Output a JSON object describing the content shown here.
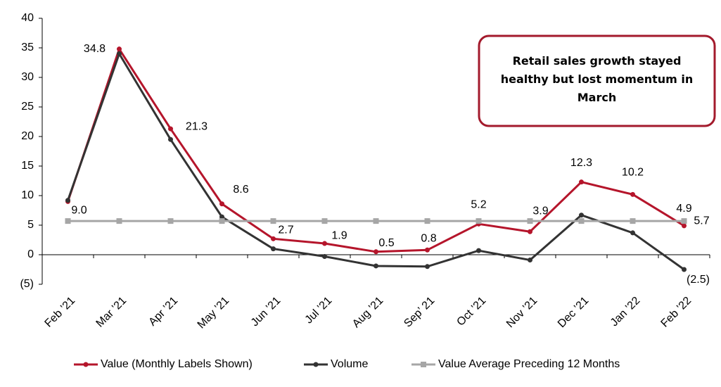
{
  "chart_data": {
    "type": "line",
    "categories": [
      "Feb ’21",
      "Mar ’21",
      "Apr ’21",
      "May ’21",
      "Jun ’21",
      "Jul ’21",
      "Aug ’21",
      "Sep’ 21",
      "Oct ’21",
      "Nov ’21",
      "Dec ’21",
      "Jan ’22",
      "Feb ’22"
    ],
    "series": [
      {
        "name": "Value (Monthly Labels Shown)",
        "color": "#b5152b",
        "values": [
          9.0,
          34.8,
          21.3,
          8.6,
          2.7,
          1.9,
          0.5,
          0.8,
          5.2,
          3.9,
          12.3,
          10.2,
          4.9
        ],
        "value_labels": [
          "9.0",
          "34.8",
          "21.3",
          "8.6",
          "2.7",
          "1.9",
          "0.5",
          "0.8",
          "5.2",
          "3.9",
          "12.3",
          "10.2",
          "4.9"
        ]
      },
      {
        "name": "Volume",
        "color": "#333333",
        "values": [
          9.2,
          34.0,
          19.5,
          6.4,
          1.0,
          -0.3,
          -1.9,
          -2.0,
          0.7,
          -0.9,
          6.7,
          3.7,
          -2.5
        ],
        "value_labels": [
          null,
          null,
          null,
          null,
          null,
          null,
          null,
          null,
          null,
          null,
          null,
          null,
          "(2.5)"
        ]
      },
      {
        "name": "Value Average Preceding 12 Months",
        "color": "#a6a6a6",
        "values": [
          5.7,
          5.7,
          5.7,
          5.7,
          5.7,
          5.7,
          5.7,
          5.7,
          5.7,
          5.7,
          5.7,
          5.7,
          5.7
        ],
        "value_labels": [
          null,
          null,
          null,
          null,
          null,
          null,
          null,
          null,
          null,
          null,
          null,
          null,
          "5.7"
        ]
      }
    ],
    "ylim": [
      -5,
      40
    ],
    "yticks": [
      {
        "value": -5,
        "label": "(5)"
      },
      0,
      5,
      10,
      15,
      20,
      25,
      30,
      35,
      40
    ],
    "annotation": "Retail sales growth stayed healthy but lost momentum in March",
    "legend": "bottom"
  }
}
